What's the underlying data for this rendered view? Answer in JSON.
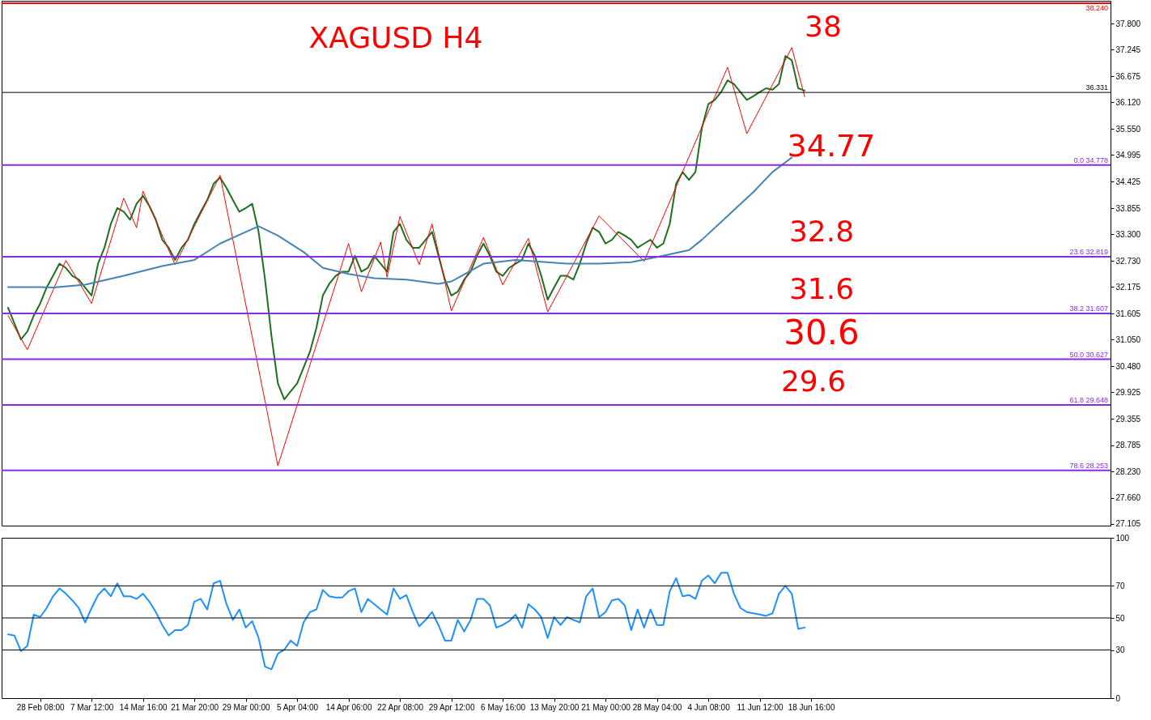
{
  "chart_data": [
    {
      "type": "line",
      "title": "XAGUSD H4",
      "tick_labels": "y",
      "categories": [
        null,
        null,
        null,
        null,
        null,
        null,
        null,
        null,
        null,
        null,
        null,
        null,
        null,
        null,
        null,
        null,
        null,
        null,
        null,
        null,
        null,
        null,
        null,
        null,
        null,
        null,
        null,
        null,
        null,
        null,
        null,
        null,
        null,
        null,
        null,
        null,
        null,
        null,
        null,
        null,
        null,
        null,
        null,
        null,
        null,
        null,
        null,
        null,
        null,
        null,
        null,
        null,
        null,
        null,
        null,
        null,
        null,
        null,
        null,
        null,
        null,
        null,
        null,
        null,
        null,
        null,
        null,
        null,
        null,
        null,
        null,
        null,
        null,
        null,
        null,
        null,
        null,
        null,
        null,
        null,
        null,
        null,
        null,
        null,
        null,
        null,
        null,
        null,
        null,
        null,
        null,
        null,
        null,
        null,
        null,
        null,
        null,
        null,
        null,
        null,
        null,
        null,
        null,
        null,
        null,
        null,
        null,
        null,
        null,
        null,
        null,
        null,
        null,
        null,
        null,
        null,
        null,
        null,
        null,
        null,
        null,
        null,
        null,
        null,
        null,
        null
      ],
      "ylim": [
        27.07,
        38.29
      ],
      "yticks": [
        27.105,
        {
          "value": 27.66,
          "label": "27.660"
        },
        {
          "value": 28.23,
          "label": "28.230"
        },
        28.785,
        29.355,
        29.925,
        {
          "value": 30.48,
          "label": "30.480"
        },
        {
          "value": 31.05,
          "label": "31.050"
        },
        31.605,
        32.175,
        {
          "value": 32.73,
          "label": "32.730"
        },
        {
          "value": 33.3,
          "label": "33.300"
        },
        33.855,
        34.425,
        34.995,
        {
          "value": 35.55,
          "label": "35.550"
        },
        {
          "value": 36.12,
          "label": "36.120"
        },
        36.675,
        37.245,
        {
          "value": 37.8,
          "label": "37.800"
        }
      ],
      "series": [
        {
          "color": "#1f6f1f",
          "values": [
            31.73,
            31.39,
            31.05,
            31.22,
            31.56,
            31.82,
            32.16,
            32.41,
            32.67,
            32.58,
            32.41,
            32.33,
            32.16,
            31.99,
            32.67,
            33.01,
            33.52,
            33.86,
            33.78,
            33.61,
            33.95,
            34.12,
            33.9,
            33.61,
            33.18,
            33.01,
            32.75,
            33.01,
            33.18,
            33.52,
            33.78,
            34.03,
            34.38,
            34.51,
            34.29,
            34.03,
            33.78,
            33.86,
            33.95,
            33.35,
            32.33,
            31.13,
            30.11,
            29.77,
            29.94,
            30.11,
            30.45,
            30.79,
            31.3,
            31.99,
            32.24,
            32.41,
            32.5,
            32.5,
            32.84,
            32.5,
            32.58,
            32.84,
            32.67,
            32.5,
            33.35,
            33.52,
            33.18,
            33.01,
            33.01,
            33.18,
            33.35,
            32.84,
            32.33,
            31.99,
            32.07,
            32.33,
            32.5,
            32.84,
            33.1,
            32.84,
            32.5,
            32.41,
            32.58,
            32.67,
            32.75,
            33.1,
            32.84,
            32.41,
            31.9,
            32.16,
            32.41,
            32.41,
            32.33,
            32.67,
            33.1,
            33.44,
            33.35,
            33.1,
            33.18,
            33.35,
            33.27,
            33.18,
            33.01,
            33.1,
            33.18,
            33.01,
            33.1,
            33.52,
            34.38,
            34.63,
            34.46,
            34.63,
            35.57,
            36.08,
            36.17,
            36.34,
            36.59,
            36.51,
            36.34,
            36.17,
            36.25,
            36.34,
            36.42,
            36.39,
            36.51,
            37.11,
            37.02,
            36.42,
            36.37,
            null
          ]
        },
        {
          "color": "#ff0000",
          "values": [
            31.56,
            null,
            null,
            30.83,
            null,
            null,
            null,
            null,
            null,
            32.74,
            null,
            null,
            null,
            31.82,
            null,
            null,
            null,
            null,
            34.07,
            null,
            33.44,
            34.22,
            null,
            null,
            null,
            null,
            32.65,
            null,
            null,
            null,
            null,
            null,
            null,
            34.56,
            null,
            null,
            null,
            null,
            null,
            null,
            null,
            null,
            28.35,
            null,
            null,
            null,
            null,
            null,
            null,
            null,
            null,
            null,
            null,
            33.1,
            null,
            32.07,
            null,
            null,
            33.13,
            32.38,
            null,
            33.68,
            null,
            null,
            32.65,
            null,
            33.52,
            null,
            null,
            31.66,
            null,
            null,
            null,
            null,
            33.23,
            null,
            null,
            32.22,
            null,
            null,
            null,
            33.21,
            null,
            null,
            31.64,
            null,
            null,
            null,
            null,
            null,
            null,
            null,
            33.69,
            null,
            null,
            null,
            null,
            null,
            null,
            32.72,
            null,
            null,
            null,
            null,
            null,
            null,
            null,
            null,
            null,
            null,
            null,
            null,
            36.87,
            null,
            null,
            35.45,
            null,
            null,
            null,
            null,
            null,
            null,
            37.29,
            null,
            36.24,
            null
          ]
        },
        {
          "color": "#4682b4",
          "values": [
            32.17,
            null,
            null,
            null,
            null,
            32.17,
            null,
            32.16,
            null,
            null,
            null,
            null,
            32.22,
            null,
            null,
            null,
            null,
            null,
            32.41,
            null,
            null,
            null,
            null,
            null,
            32.62,
            null,
            null,
            null,
            null,
            32.75,
            null,
            null,
            null,
            33.1,
            null,
            null,
            null,
            33.35,
            null,
            33.47,
            null,
            null,
            33.27,
            null,
            null,
            null,
            32.92,
            null,
            null,
            32.58,
            null,
            null,
            null,
            32.45,
            null,
            null,
            null,
            32.36,
            null,
            null,
            null,
            null,
            32.33,
            null,
            null,
            null,
            null,
            32.24,
            null,
            32.29,
            null,
            null,
            null,
            null,
            32.67,
            null,
            null,
            null,
            null,
            32.75,
            null,
            null,
            null,
            null,
            null,
            null,
            null,
            32.67,
            null,
            null,
            null,
            null,
            32.67,
            null,
            null,
            null,
            null,
            32.7,
            null,
            null,
            null,
            null,
            32.84,
            null,
            null,
            null,
            32.96,
            null,
            33.18,
            null,
            null,
            null,
            33.69,
            null,
            null,
            null,
            34.2,
            null,
            null,
            34.63,
            null,
            null,
            34.94,
            null,
            null,
            null
          ]
        }
      ],
      "ref_lines": [
        {
          "axis": "y",
          "value": 38.24,
          "label": "38.240",
          "color": "#ff0000"
        },
        {
          "axis": "y",
          "value": 36.331,
          "label": "36.331",
          "color": "#000000"
        },
        {
          "axis": "y",
          "value": 34.778,
          "label": "0.0 34.778",
          "color": "#8a2be2"
        },
        {
          "axis": "y",
          "value": 32.819,
          "label": "23.6 32.819",
          "color": "#8a2be2"
        },
        {
          "axis": "y",
          "value": 31.607,
          "label": "38.2 31.607",
          "color": "#8a2be2"
        },
        {
          "axis": "y",
          "value": 30.627,
          "label": "50.0 30.627",
          "color": "#8a2be2"
        },
        {
          "axis": "y",
          "value": 29.648,
          "label": "61.8 29.648",
          "color": "#8a2be2"
        },
        {
          "axis": "y",
          "value": 28.253,
          "label": "78.6 28.253",
          "color": "#8a2be2"
        }
      ],
      "annotations": [
        "38",
        "34.77",
        "32.8",
        "31.6",
        "30.6",
        "29.6"
      ]
    },
    {
      "type": "line",
      "categories": [
        null,
        null,
        null,
        null,
        null,
        "28 Feb 08:00",
        null,
        null,
        null,
        null,
        null,
        null,
        null,
        "7 Mar 12:00",
        null,
        null,
        null,
        null,
        null,
        null,
        null,
        "14 Mar 16:00",
        null,
        null,
        null,
        null,
        null,
        null,
        null,
        "21 Mar 20:00",
        null,
        null,
        null,
        null,
        null,
        null,
        null,
        "29 Mar 00:00",
        null,
        null,
        null,
        null,
        null,
        null,
        null,
        "5 Apr 04:00",
        null,
        null,
        null,
        null,
        null,
        null,
        null,
        "14 Apr 06:00",
        null,
        null,
        null,
        null,
        null,
        null,
        null,
        "22 Apr 08:00",
        null,
        null,
        null,
        null,
        null,
        null,
        null,
        "29 Apr 12:00",
        null,
        null,
        null,
        null,
        null,
        null,
        null,
        "6 May 16:00",
        null,
        null,
        null,
        null,
        null,
        null,
        null,
        "13 May 20:00",
        null,
        null,
        null,
        null,
        null,
        null,
        null,
        "21 May 00:00",
        null,
        null,
        null,
        null,
        null,
        null,
        null,
        "28 May 04:00",
        null,
        null,
        null,
        null,
        null,
        null,
        null,
        "4 Jun 08:00",
        null,
        null,
        null,
        null,
        null,
        null,
        null,
        "11 Jun 12:00",
        null,
        null,
        null,
        null,
        null,
        null,
        null,
        "18 Jun 16:00"
      ],
      "ylim": [
        0,
        100
      ],
      "yticks": [
        0,
        30,
        50,
        70,
        100
      ],
      "series": [
        {
          "color": "#1e90ff",
          "values": [
            39.8,
            39.0,
            29.3,
            32.6,
            52.1,
            50.5,
            56.2,
            63.5,
            68.4,
            65.1,
            61.0,
            56.2,
            47.2,
            56.2,
            64.3,
            68.4,
            63.5,
            71.6,
            63.5,
            63.5,
            61.9,
            65.1,
            60.2,
            53.7,
            45.6,
            39.1,
            42.4,
            42.4,
            45.6,
            60.2,
            61.9,
            55.3,
            71.6,
            73.2,
            58.6,
            48.8,
            55.3,
            44.0,
            48.0,
            37.5,
            19.6,
            18.0,
            27.7,
            30.2,
            35.9,
            32.6,
            47.2,
            53.7,
            55.3,
            67.5,
            63.5,
            62.7,
            62.7,
            66.7,
            68.4,
            53.7,
            61.9,
            58.6,
            55.3,
            52.1,
            68.4,
            61.9,
            64.3,
            53.7,
            44.8,
            48.8,
            53.7,
            45.6,
            35.9,
            35.9,
            48.8,
            41.5,
            48.8,
            61.9,
            61.9,
            57.8,
            44.0,
            45.6,
            48.0,
            52.1,
            44.0,
            58.6,
            55.3,
            50.5,
            37.5,
            50.5,
            45.6,
            50.5,
            48.8,
            47.2,
            63.5,
            68.4,
            50.5,
            53.7,
            61.0,
            61.9,
            57.8,
            42.4,
            55.3,
            44.0,
            55.3,
            45.6,
            45.6,
            66.7,
            74.8,
            63.5,
            64.3,
            61.9,
            73.2,
            76.5,
            71.6,
            78.1,
            78.1,
            65.1,
            56.2,
            53.7,
            52.9,
            52.1,
            51.3,
            52.9,
            65.1,
            70.0,
            65.1,
            43.2,
            44.0,
            null
          ]
        }
      ],
      "ref_lines": [
        {
          "axis": "y",
          "value": 70,
          "color": "#000000"
        },
        {
          "axis": "y",
          "value": 50,
          "color": "#000000"
        },
        {
          "axis": "y",
          "value": 30,
          "color": "#000000"
        }
      ]
    }
  ]
}
